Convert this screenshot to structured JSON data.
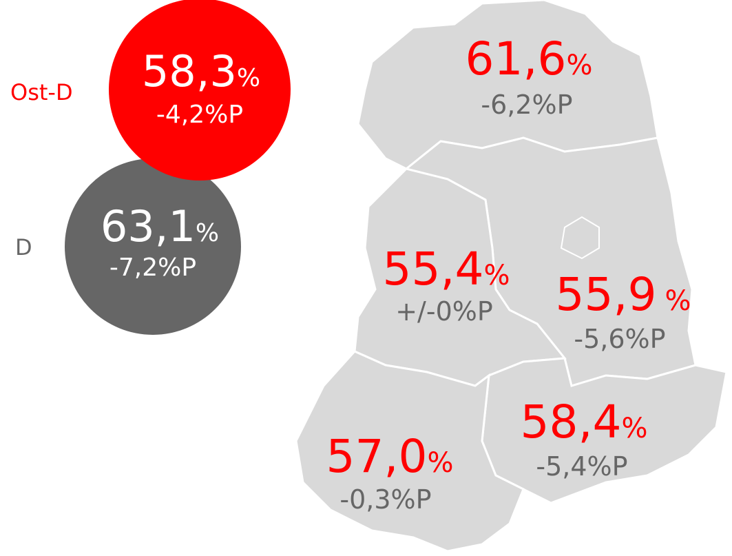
{
  "overview": [
    {
      "label": "Ost-D",
      "value": "58,3",
      "unit": "%",
      "change": "-4,2%P"
    },
    {
      "label": "D",
      "value": "63,1",
      "unit": "%",
      "change": "-7,2%P"
    }
  ],
  "regions": [
    {
      "value": "61,6",
      "unit": "%",
      "change": "-6,2%P"
    },
    {
      "value": "55,4",
      "unit": "%",
      "change": "+/-0%P"
    },
    {
      "value": "55,9",
      "unit": "%",
      "change": "-5,6%P"
    },
    {
      "value": "58,4",
      "unit": "%",
      "change": "-5,4%P"
    },
    {
      "value": "57,0",
      "unit": "%",
      "change": "-0,3%P"
    }
  ]
}
